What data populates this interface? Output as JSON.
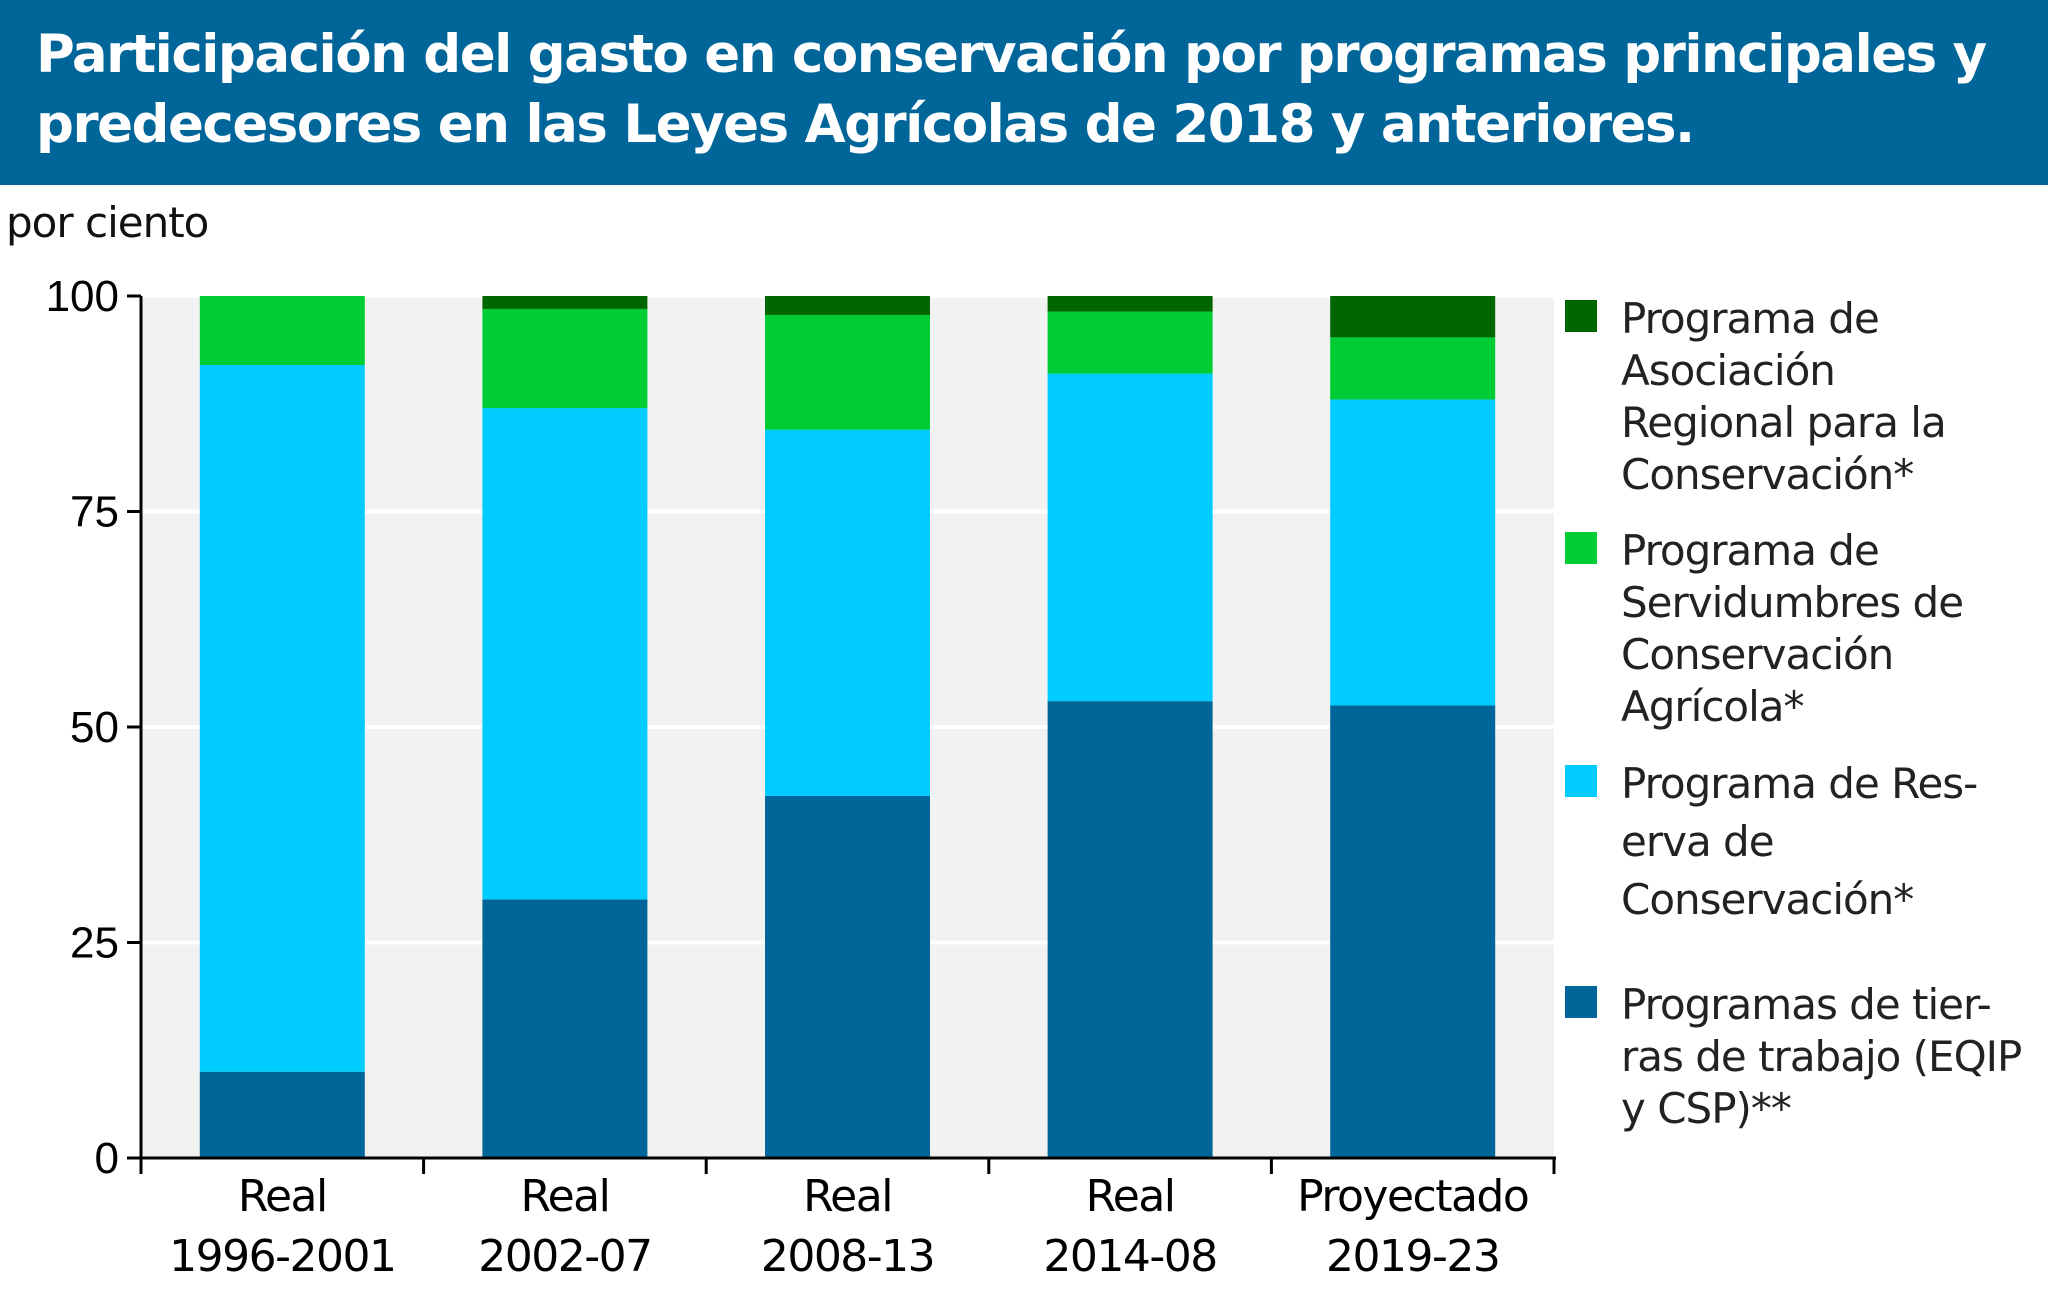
{
  "chart_data": {
    "type": "bar",
    "stacked": true,
    "title": "Participación del gasto en conservación por programas principales y predecesores en las Leyes Agrícolas de 2018 y anteriores.",
    "ylabel": "por ciento",
    "ylim": [
      0,
      100
    ],
    "yticks": [
      "0",
      "25",
      "50",
      "75",
      "100"
    ],
    "grid": true,
    "legend_position": "right",
    "categories": [
      [
        "Real",
        "1996-2001"
      ],
      [
        "Real",
        "2002-07"
      ],
      [
        "Real",
        "2008-13"
      ],
      [
        "Real",
        "2014-08"
      ],
      [
        "Proyectado",
        "2019-23"
      ]
    ],
    "series": [
      {
        "label_lines": [
          "Programas de tier-",
          "ras de trabajo (EQIP",
          "y CSP)**"
        ],
        "color": "#00669a",
        "values": [
          10,
          30,
          42,
          53,
          52.5
        ]
      },
      {
        "label_lines": [
          "Programa de Res-",
          "erva de",
          "Conservación*"
        ],
        "color": "#00ccff",
        "values": [
          82,
          57,
          42.5,
          38,
          35.5
        ]
      },
      {
        "label_lines": [
          "Programa de",
          "Servidumbres de",
          "Conservación",
          "Agrícola*"
        ],
        "color": "#00cc33",
        "values": [
          8,
          11.5,
          13.3,
          7.2,
          7.2
        ]
      },
      {
        "label_lines": [
          "Programa de",
          "Asociación",
          "Regional para la",
          "Conservación*"
        ],
        "color": "#006600",
        "values": [
          0,
          1.5,
          2.2,
          1.8,
          4.8
        ]
      }
    ]
  }
}
